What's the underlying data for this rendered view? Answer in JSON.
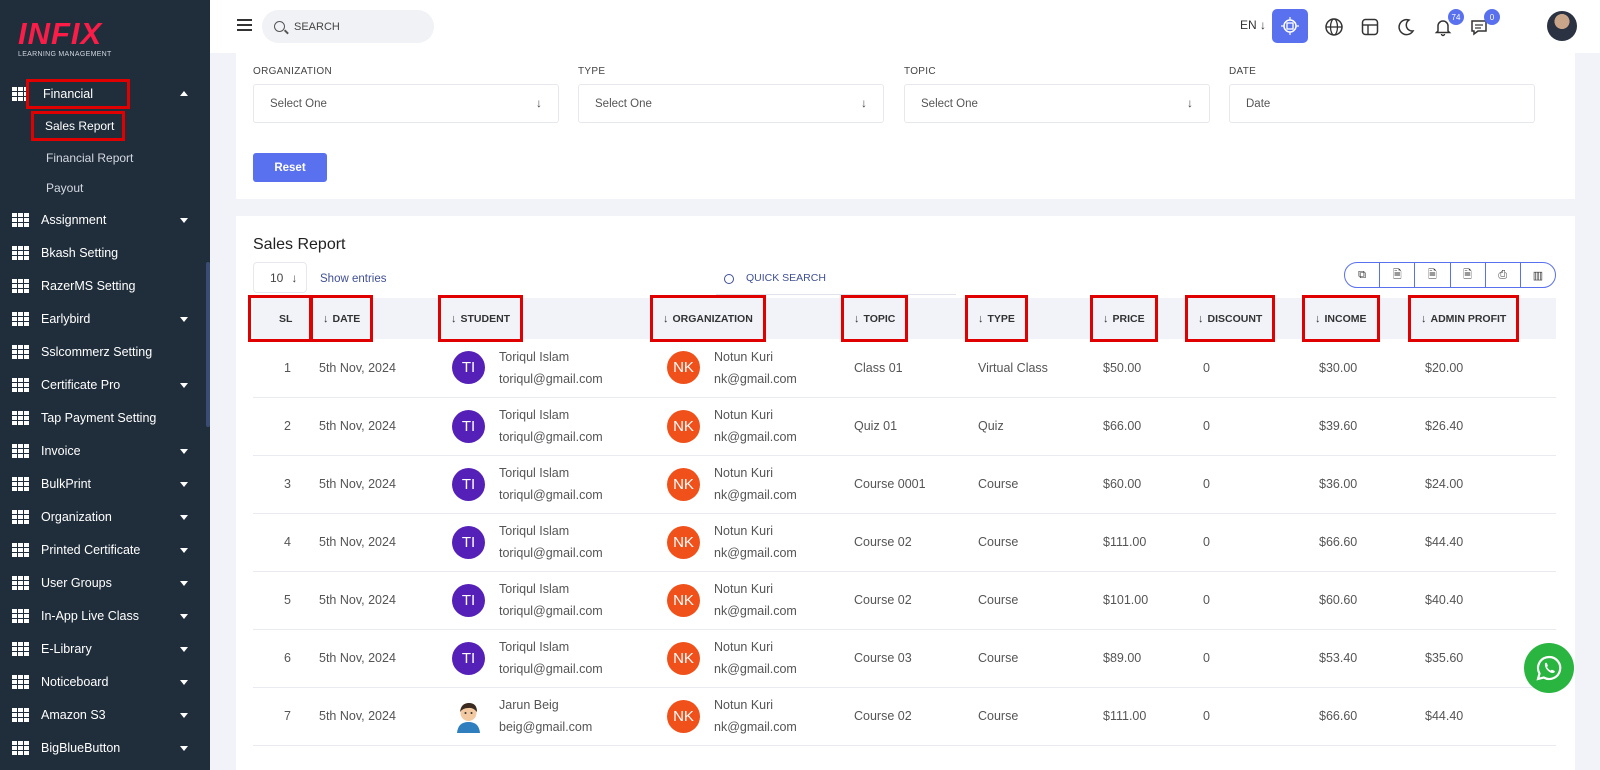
{
  "brand": {
    "logo": "INFIX",
    "tagline": "LEARNING MANAGEMENT"
  },
  "sidebar": {
    "financial": "Financial",
    "sub": [
      "Sales Report",
      "Financial Report",
      "Payout"
    ],
    "items": [
      {
        "label": "Assignment",
        "caret": true
      },
      {
        "label": "Bkash Setting",
        "caret": false
      },
      {
        "label": "RazerMS Setting",
        "caret": false
      },
      {
        "label": "Earlybird",
        "caret": true
      },
      {
        "label": "Sslcommerz Setting",
        "caret": false
      },
      {
        "label": "Certificate Pro",
        "caret": true
      },
      {
        "label": "Tap Payment Setting",
        "caret": false
      },
      {
        "label": "Invoice",
        "caret": true
      },
      {
        "label": "BulkPrint",
        "caret": true
      },
      {
        "label": "Organization",
        "caret": true
      },
      {
        "label": "Printed Certificate",
        "caret": true
      },
      {
        "label": "User Groups",
        "caret": true
      },
      {
        "label": "In-App Live Class",
        "caret": true
      },
      {
        "label": "E-Library",
        "caret": true
      },
      {
        "label": "Noticeboard",
        "caret": true
      },
      {
        "label": "Amazon S3",
        "caret": true
      },
      {
        "label": "BigBlueButton",
        "caret": true
      }
    ]
  },
  "topbar": {
    "search_placeholder": "SEARCH",
    "language": "EN",
    "notifications_count": "74",
    "messages_count": "0"
  },
  "filters": {
    "organization_label": "ORGANIZATION",
    "organization_value": "Select One",
    "type_label": "TYPE",
    "type_value": "Select One",
    "topic_label": "TOPIC",
    "topic_value": "Select One",
    "date_label": "DATE",
    "date_placeholder": "Date",
    "reset_label": "Reset"
  },
  "report": {
    "title": "Sales Report",
    "entries_value": "10",
    "entries_label": "Show entries",
    "quick_search": "QUICK SEARCH",
    "columns": [
      "SL",
      "DATE",
      "STUDENT",
      "ORGANIZATION",
      "TOPIC",
      "TYPE",
      "PRICE",
      "DISCOUNT",
      "INCOME",
      "ADMIN PROFIT"
    ],
    "rows": [
      {
        "sl": "1",
        "date": "5th Nov, 2024",
        "student_initials": "TI",
        "student_name": "Toriqul Islam",
        "student_email": "toriqul@gmail.com",
        "org_initials": "NK",
        "org_name": "Notun Kuri",
        "org_email": "nk@gmail.com",
        "topic": "Class 01",
        "type": "Virtual Class",
        "price": "$50.00",
        "discount": "0",
        "income": "$30.00",
        "admin_profit": "$20.00"
      },
      {
        "sl": "2",
        "date": "5th Nov, 2024",
        "student_initials": "TI",
        "student_name": "Toriqul Islam",
        "student_email": "toriqul@gmail.com",
        "org_initials": "NK",
        "org_name": "Notun Kuri",
        "org_email": "nk@gmail.com",
        "topic": "Quiz 01",
        "type": "Quiz",
        "price": "$66.00",
        "discount": "0",
        "income": "$39.60",
        "admin_profit": "$26.40"
      },
      {
        "sl": "3",
        "date": "5th Nov, 2024",
        "student_initials": "TI",
        "student_name": "Toriqul Islam",
        "student_email": "toriqul@gmail.com",
        "org_initials": "NK",
        "org_name": "Notun Kuri",
        "org_email": "nk@gmail.com",
        "topic": "Course 0001",
        "type": "Course",
        "price": "$60.00",
        "discount": "0",
        "income": "$36.00",
        "admin_profit": "$24.00"
      },
      {
        "sl": "4",
        "date": "5th Nov, 2024",
        "student_initials": "TI",
        "student_name": "Toriqul Islam",
        "student_email": "toriqul@gmail.com",
        "org_initials": "NK",
        "org_name": "Notun Kuri",
        "org_email": "nk@gmail.com",
        "topic": "Course 02",
        "type": "Course",
        "price": "$111.00",
        "discount": "0",
        "income": "$66.60",
        "admin_profit": "$44.40"
      },
      {
        "sl": "5",
        "date": "5th Nov, 2024",
        "student_initials": "TI",
        "student_name": "Toriqul Islam",
        "student_email": "toriqul@gmail.com",
        "org_initials": "NK",
        "org_name": "Notun Kuri",
        "org_email": "nk@gmail.com",
        "topic": "Course 02",
        "type": "Course",
        "price": "$101.00",
        "discount": "0",
        "income": "$60.60",
        "admin_profit": "$40.40"
      },
      {
        "sl": "6",
        "date": "5th Nov, 2024",
        "student_initials": "TI",
        "student_name": "Toriqul Islam",
        "student_email": "toriqul@gmail.com",
        "org_initials": "NK",
        "org_name": "Notun Kuri",
        "org_email": "nk@gmail.com",
        "topic": "Course 03",
        "type": "Course",
        "price": "$89.00",
        "discount": "0",
        "income": "$53.40",
        "admin_profit": "$35.60"
      },
      {
        "sl": "7",
        "date": "5th Nov, 2024",
        "student_initials": "",
        "student_name": "Jarun Beig",
        "student_email": "beig@gmail.com",
        "org_initials": "NK",
        "org_name": "Notun Kuri",
        "org_email": "nk@gmail.com",
        "topic": "Course 02",
        "type": "Course",
        "price": "$111.00",
        "discount": "0",
        "income": "$66.60",
        "admin_profit": "$44.40"
      }
    ]
  },
  "colors": {
    "accent": "#5a71ef",
    "sidebar_bg": "#202e3b",
    "student_avatar": "#5420b8",
    "org_avatar": "#f0501a",
    "highlight": "#e00000",
    "whatsapp": "#2ab540"
  }
}
